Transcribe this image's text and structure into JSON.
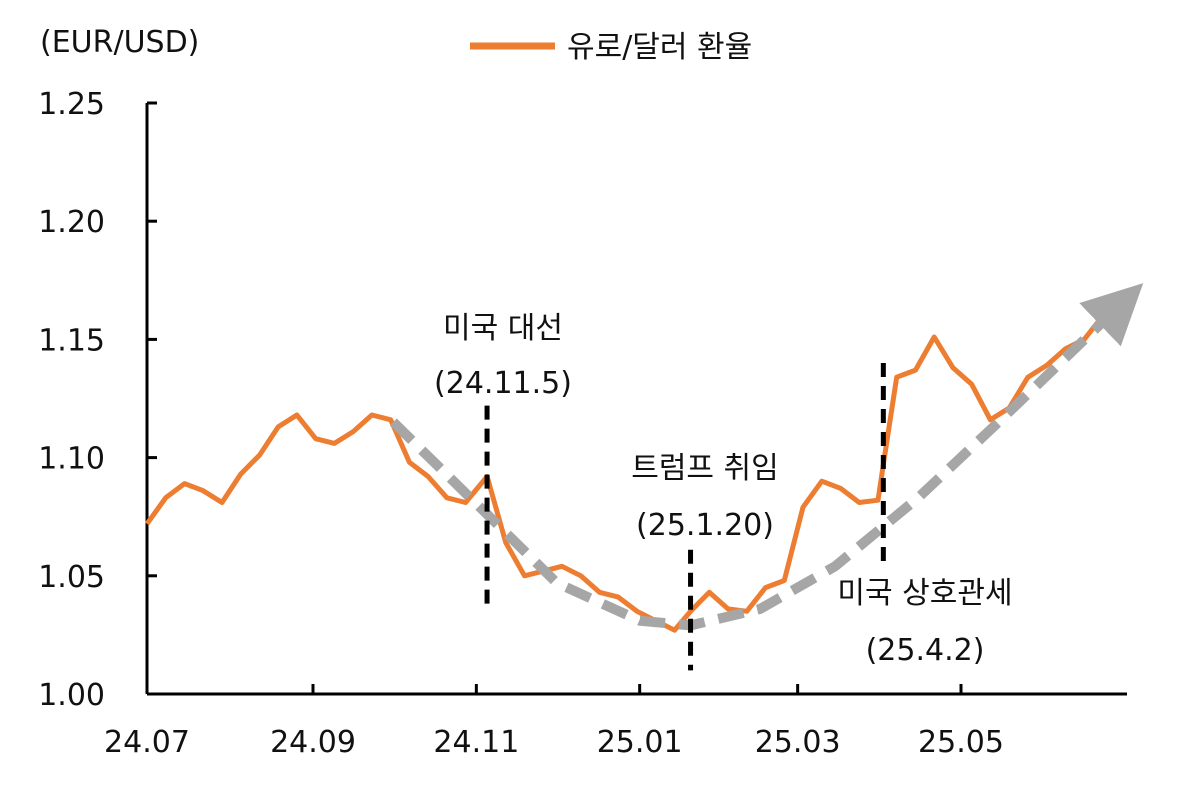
{
  "chart_data": {
    "type": "line",
    "ylabel": "(EUR/USD)",
    "ylim": [
      1.0,
      1.25
    ],
    "yticks": [
      "1.00",
      "1.05",
      "1.10",
      "1.15",
      "1.20",
      "1.25"
    ],
    "xticks": [
      "24.07",
      "24.09",
      "24.11",
      "25.01",
      "25.03",
      "25.05"
    ],
    "legend": {
      "placement": "top-center"
    },
    "series": [
      {
        "name": "유로/달러 환율",
        "color": "#ED7D31",
        "x": [
          "24.07.01",
          "24.07.08",
          "24.07.15",
          "24.07.22",
          "24.07.29",
          "24.08.05",
          "24.08.12",
          "24.08.19",
          "24.08.26",
          "24.09.02",
          "24.09.09",
          "24.09.16",
          "24.09.23",
          "24.09.30",
          "24.10.07",
          "24.10.14",
          "24.10.21",
          "24.10.28",
          "24.11.05",
          "24.11.12",
          "24.11.19",
          "24.11.26",
          "24.12.03",
          "24.12.10",
          "24.12.17",
          "24.12.24",
          "24.12.31",
          "25.01.07",
          "25.01.14",
          "25.01.20",
          "25.01.27",
          "25.02.03",
          "25.02.10",
          "25.02.17",
          "25.02.24",
          "25.03.03",
          "25.03.10",
          "25.03.17",
          "25.03.24",
          "25.03.31",
          "25.04.02",
          "25.04.07",
          "25.04.14",
          "25.04.21",
          "25.04.28",
          "25.05.05",
          "25.05.12",
          "25.05.19",
          "25.05.26",
          "25.06.02",
          "25.06.09",
          "25.06.16",
          "25.06.23",
          "25.06.30"
        ],
        "values": [
          1.072,
          1.083,
          1.089,
          1.086,
          1.081,
          1.093,
          1.101,
          1.113,
          1.118,
          1.108,
          1.106,
          1.111,
          1.118,
          1.116,
          1.098,
          1.092,
          1.083,
          1.081,
          1.092,
          1.064,
          1.05,
          1.052,
          1.054,
          1.05,
          1.043,
          1.041,
          1.035,
          1.031,
          1.027,
          1.035,
          1.043,
          1.036,
          1.035,
          1.045,
          1.048,
          1.079,
          1.09,
          1.087,
          1.081,
          1.082,
          1.097,
          1.134,
          1.137,
          1.151,
          1.138,
          1.131,
          1.116,
          1.121,
          1.134,
          1.139,
          1.146,
          1.15,
          1.16,
          1.17
        ]
      },
      {
        "name": "",
        "color": "#A6A6A6",
        "x": [
          "24.10.01",
          "24.11.05",
          "24.12.01",
          "25.01.01",
          "25.01.20",
          "25.02.15",
          "25.03.15",
          "25.04.15",
          "25.05.15",
          "25.06.30"
        ],
        "values": [
          1.115,
          1.076,
          1.047,
          1.031,
          1.029,
          1.036,
          1.054,
          1.083,
          1.115,
          1.165
        ]
      }
    ],
    "events": [
      {
        "label": "미국 대선",
        "date_label": "(24.11.5)",
        "x": "24.11.05",
        "y_from": 1.037,
        "y_to": 1.122
      },
      {
        "label": "트럼프 취임",
        "date_label": "(25.1.20)",
        "x": "25.01.20",
        "y_from": 1.01,
        "y_to": 1.061
      },
      {
        "label": "미국 상호관세",
        "date_label": "(25.4.2)",
        "x": "25.04.02",
        "y_from": 1.055,
        "y_to": 1.14
      }
    ]
  }
}
